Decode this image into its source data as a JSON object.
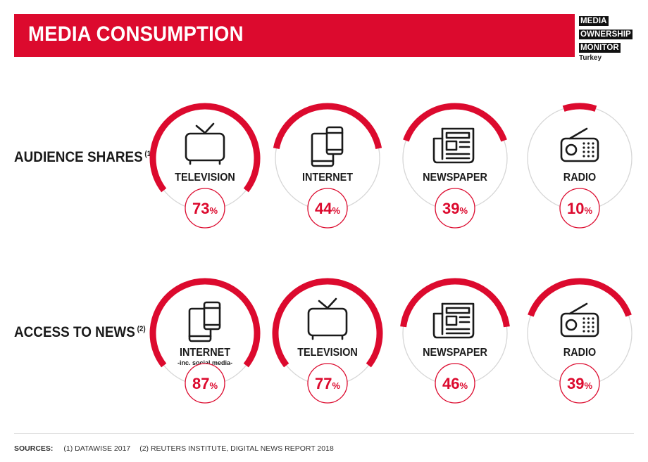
{
  "header": {
    "title": "MEDIA CONSUMPTION",
    "logo_lines": [
      "MEDIA",
      "OWNERSHIP",
      "MONITOR"
    ],
    "logo_country": "Turkey"
  },
  "colors": {
    "accent": "#dc0a2e",
    "track": "#d6d6d6",
    "text": "#1a1a1a"
  },
  "chart_data": [
    {
      "type": "gauge",
      "row_label": "AUDIENCE SHARES",
      "footnote": "(1)",
      "items": [
        {
          "label": "TELEVISION",
          "sublabel": "",
          "value": 73,
          "icon": "tv-icon"
        },
        {
          "label": "INTERNET",
          "sublabel": "",
          "value": 44,
          "icon": "devices-icon"
        },
        {
          "label": "NEWSPAPER",
          "sublabel": "",
          "value": 39,
          "icon": "newspaper-icon"
        },
        {
          "label": "RADIO",
          "sublabel": "",
          "value": 10,
          "icon": "radio-icon"
        }
      ],
      "unit": "%"
    },
    {
      "type": "gauge",
      "row_label": "ACCESS TO NEWS",
      "footnote": "(2)",
      "items": [
        {
          "label": "INTERNET",
          "sublabel": "-inc. social media-",
          "value": 87,
          "icon": "devices-icon"
        },
        {
          "label": "TELEVISION",
          "sublabel": "",
          "value": 77,
          "icon": "tv-icon"
        },
        {
          "label": "NEWSPAPER",
          "sublabel": "",
          "value": 46,
          "icon": "newspaper-icon"
        },
        {
          "label": "RADIO",
          "sublabel": "",
          "value": 39,
          "icon": "radio-icon"
        }
      ],
      "unit": "%"
    }
  ],
  "sources": {
    "label": "SOURCES:",
    "items": [
      "(1) DATAWISE 2017",
      "(2) REUTERS INSTITUTE, DIGITAL NEWS REPORT 2018"
    ]
  }
}
